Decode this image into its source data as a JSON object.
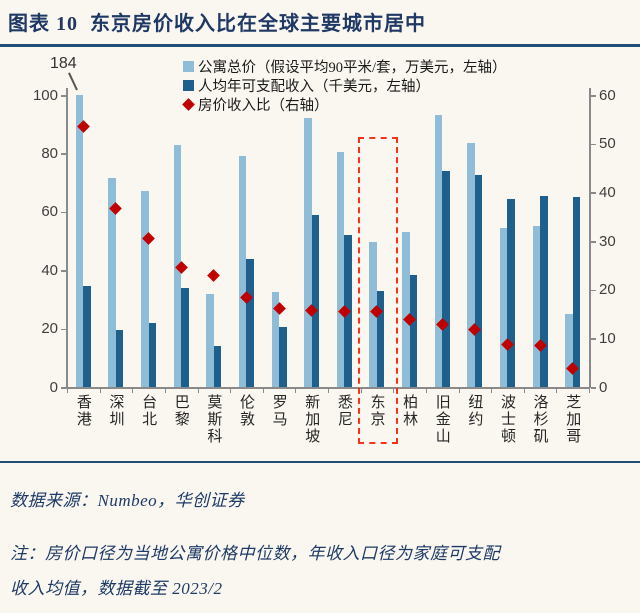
{
  "header": {
    "title": "图表 10  东京房价收入比在全球主要城市居中"
  },
  "legend": {
    "items": [
      {
        "label": "公寓总价（假设平均90平米/套，万美元，左轴）",
        "marker": "square",
        "color": "#8FBDD7"
      },
      {
        "label": "人均年可支配收入（千美元，左轴）",
        "marker": "square",
        "color": "#1F5F8B"
      },
      {
        "label": "房价收入比（右轴）",
        "marker": "diamond",
        "color": "#C00000"
      }
    ]
  },
  "chart_data": {
    "type": "bar",
    "categories": [
      "香港",
      "深圳",
      "台北",
      "巴黎",
      "莫斯科",
      "伦敦",
      "罗马",
      "新加坡",
      "悉尼",
      "东京",
      "柏林",
      "旧金山",
      "纽约",
      "波士顿",
      "洛杉矶",
      "芝加哥"
    ],
    "series": [
      {
        "name": "公寓总价（假设平均90平米/套，万美元，左轴）",
        "axis": "left",
        "color": "#8FBDD7",
        "values": [
          184,
          71.5,
          67,
          83,
          32,
          79,
          32.5,
          92,
          80.5,
          49.5,
          53,
          93,
          83.5,
          54.5,
          55,
          25
        ]
      },
      {
        "name": "人均年可支配收入（千美元，左轴）",
        "axis": "left",
        "color": "#1F5F8B",
        "values": [
          34.5,
          19.5,
          22,
          34,
          14,
          44,
          20.5,
          59,
          52,
          33,
          38.5,
          74,
          72.5,
          64.5,
          65.5,
          65
        ]
      },
      {
        "name": "房价收入比（右轴）",
        "axis": "right",
        "type": "scatter-diamond",
        "color": "#C00000",
        "values": [
          53.5,
          36.7,
          30.6,
          24.5,
          23.0,
          18.3,
          16.2,
          15.8,
          15.6,
          15.5,
          13.9,
          12.8,
          11.8,
          8.8,
          8.6,
          3.9
        ]
      }
    ],
    "left_axis": {
      "ticks": [
        "100",
        "80",
        "60",
        "40",
        "20",
        "0"
      ],
      "min": 0,
      "max": 100
    },
    "right_axis": {
      "ticks": [
        "60",
        "50",
        "40",
        "30",
        "20",
        "10",
        "0"
      ],
      "min": 0,
      "max": 60
    },
    "grid": false,
    "legend_position": "top-inside",
    "annotation": {
      "text": "184",
      "city": "香港",
      "meaning": "香港公寓总价184万美元，柱形在100处截断"
    },
    "highlight": {
      "city": "东京",
      "style": "red-dashed-box"
    }
  },
  "footer": {
    "source_line": "数据来源：Numbeo，华创证券",
    "note_line1": "注：房价口径为当地公寓价格中位数，年收入口径为家庭可支配",
    "note_line2": "收入均值，数据截至 2023/2"
  },
  "colors": {
    "price_bar": "#8FBDD7",
    "income_bar": "#1F5F8B",
    "ratio_diamond": "#C00000",
    "highlight_box": "#F6341C",
    "title_navy": "#1F3864",
    "rule_blue": "#1F4E79",
    "background": "#FAF7F0"
  }
}
